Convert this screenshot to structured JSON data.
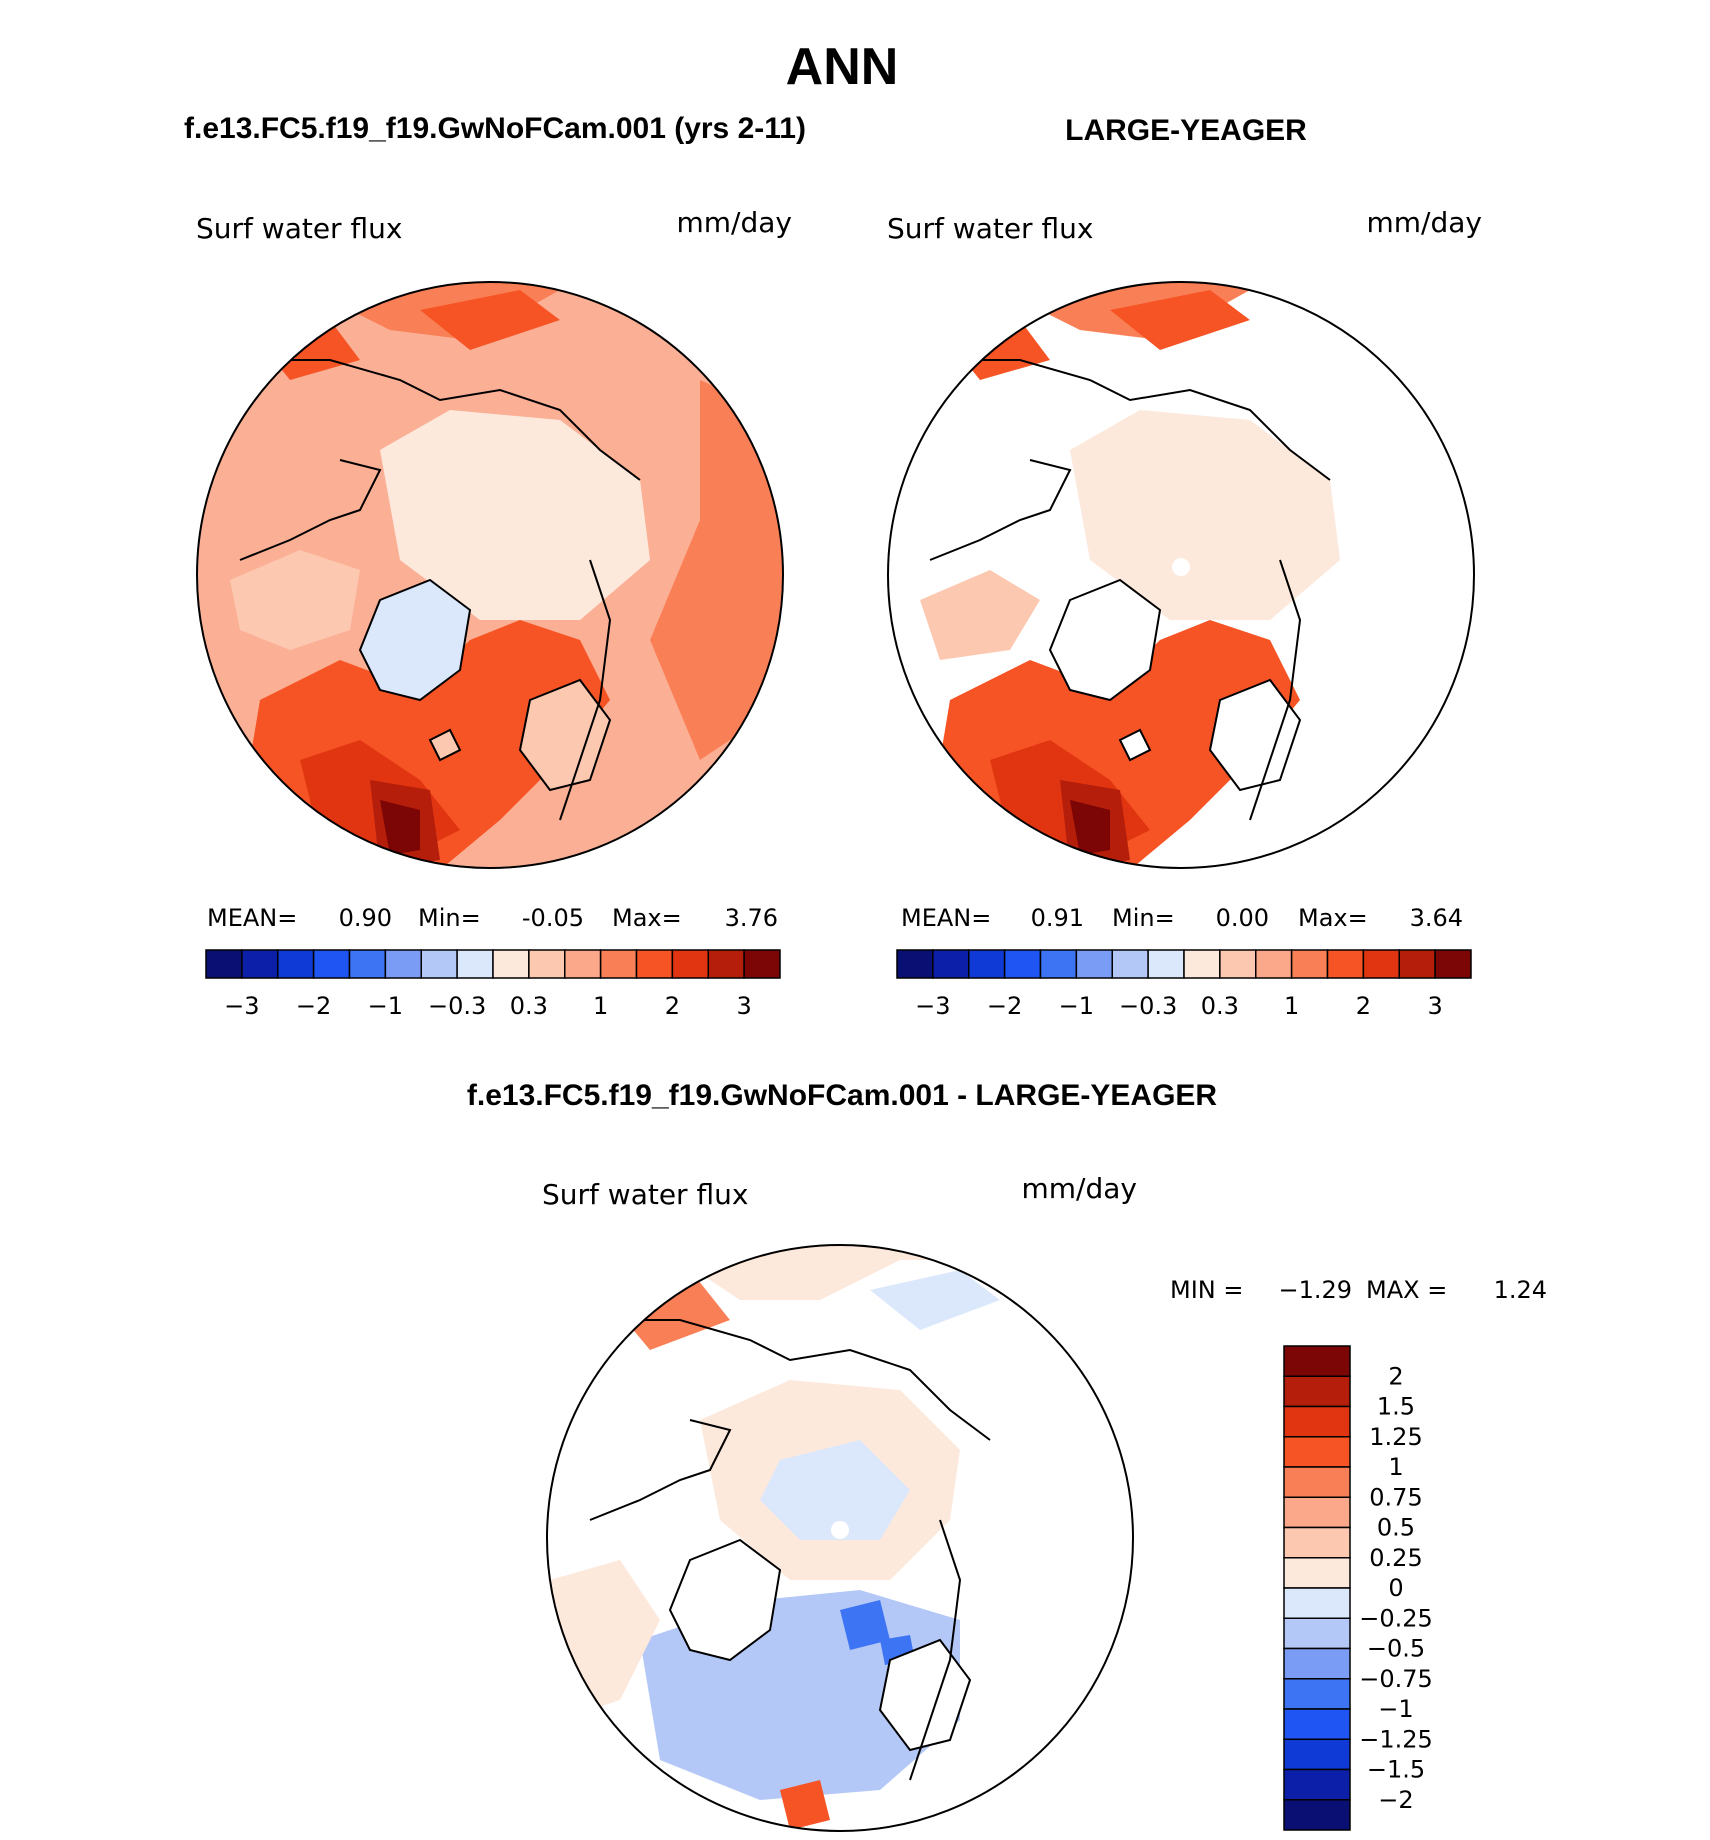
{
  "figure": {
    "main_title": "ANN",
    "colors": {
      "ocean_border": "#000000",
      "land_fill": "#ffffff",
      "background": "#ffffff"
    }
  },
  "panels": [
    {
      "header": "f.e13.FC5.f19_f19.GwNoFCam.001 (yrs 2-11)",
      "variable": "Surf water flux",
      "units": "mm/day",
      "stats": {
        "mean_label": "MEAN=",
        "mean": "0.90",
        "min_label": "Min=",
        "min": "-0.05",
        "max_label": "Max=",
        "max": "3.76"
      },
      "base_fill": "#fbb096"
    },
    {
      "header": "LARGE-YEAGER",
      "variable": "Surf water flux",
      "units": "mm/day",
      "stats": {
        "mean_label": "MEAN=",
        "mean": "0.91",
        "min_label": "Min=",
        "min": "0.00",
        "max_label": "Max=",
        "max": "3.64"
      },
      "base_fill": "#ffffff"
    }
  ],
  "colorbar_h": {
    "colors": [
      "#0a0f73",
      "#0b1fa8",
      "#0f3ad6",
      "#1f55f2",
      "#3d74f4",
      "#7a9cf5",
      "#b4c8f8",
      "#dbe8fb",
      "#fde8dc",
      "#fcc8b0",
      "#fba789",
      "#f98056",
      "#f65425",
      "#e03510",
      "#b41e0a",
      "#7c0505"
    ],
    "labels": [
      "−3",
      "−2",
      "−1",
      "−0.3",
      "0.3",
      "1",
      "2",
      "3"
    ]
  },
  "diff_panel": {
    "header": "f.e13.FC5.f19_f19.GwNoFCam.001 - LARGE-YEAGER",
    "variable": "Surf water flux",
    "units": "mm/day",
    "min_label": "MIN =",
    "min": "−1.29",
    "max_label": "MAX =",
    "max": "1.24"
  },
  "colorbar_v": {
    "colors": [
      "#7c0505",
      "#b41e0a",
      "#e03510",
      "#f65425",
      "#f98056",
      "#fba789",
      "#fcc8b0",
      "#fde8dc",
      "#dbe8fb",
      "#b4c8f8",
      "#7a9cf5",
      "#3d74f4",
      "#1f55f2",
      "#0f3ad6",
      "#0b1fa8",
      "#0a0f73"
    ],
    "labels": [
      "2",
      "1.5",
      "1.25",
      "1",
      "0.75",
      "0.5",
      "0.25",
      "0",
      "−0.25",
      "−0.5",
      "−0.75",
      "−1",
      "−1.25",
      "−1.5",
      "−2"
    ]
  }
}
